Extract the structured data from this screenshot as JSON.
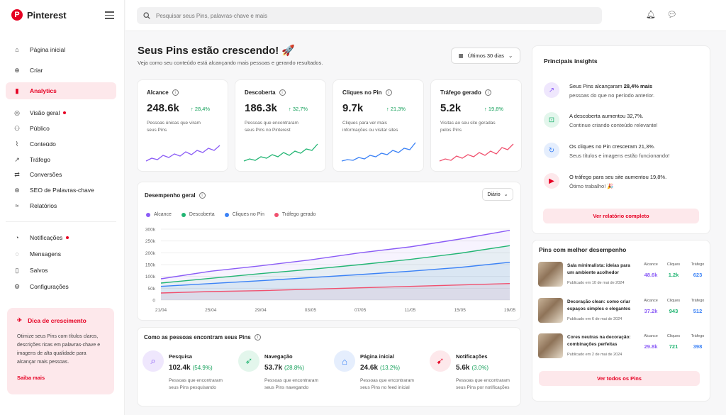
{
  "app": {
    "name": "Pinterest",
    "logo_letter": "P"
  },
  "sidebar": {
    "items": [
      {
        "label": "Página inicial",
        "icon": "home-icon"
      },
      {
        "label": "Criar",
        "icon": "plus-circle-icon"
      },
      {
        "label": "Analytics",
        "icon": "bar-chart-icon"
      },
      {
        "label": "Visão geral",
        "icon": "grid-icon"
      },
      {
        "label": "Público",
        "icon": "people-icon"
      },
      {
        "label": "Conteúdo",
        "icon": "content-icon"
      },
      {
        "label": "Tráfego",
        "icon": "trend-icon"
      },
      {
        "label": "Conversões",
        "icon": "conversion-icon"
      },
      {
        "label": "SEO de Palavras-chave",
        "icon": "seo-icon"
      },
      {
        "label": "Relatórios",
        "icon": "report-icon"
      },
      {
        "label": "Notificações",
        "icon": "bell-icon"
      },
      {
        "label": "Mensagens",
        "icon": "message-icon"
      },
      {
        "label": "Salvos",
        "icon": "bookmark-icon"
      },
      {
        "label": "Configurações",
        "icon": "gear-icon"
      }
    ],
    "tip": {
      "title": "Dica de crescimento",
      "text": "Otimize seus Pins com títulos claros, descrições ricas em palavras-chave e imagens de alta qualidade para alcançar mais pessoas.",
      "link": "Saiba mais"
    }
  },
  "search": {
    "placeholder": "Pesquisar seus Pins, palavras-chave e mais"
  },
  "header": {
    "title": "Seus Pins estão crescendo! 🚀",
    "subtitle": "Veja como seu conteúdo está alcançando mais pessoas e gerando resultados.",
    "date_range": "Últimos 30 dias"
  },
  "kpis": [
    {
      "title": "Alcance",
      "value": "248.6k",
      "change": "↑ 28,4%",
      "desc": "Pessoas únicas que viram seus Pins",
      "color": "#8b5cf6"
    },
    {
      "title": "Descoberta",
      "value": "186.3k",
      "change": "↑ 32,7%",
      "desc": "Pessoas que encontraram seus Pins no Pinterest",
      "color": "#22b573"
    },
    {
      "title": "Cliques no Pin",
      "value": "9.7k",
      "change": "↑ 21,3%",
      "desc": "Cliques para ver mais informações ou visitar sites",
      "color": "#3b82f6"
    },
    {
      "title": "Tráfego gerado",
      "value": "5.2k",
      "change": "↑ 19,8%",
      "desc": "Visitas ao seu site geradas pelos Pins",
      "color": "#f0506e"
    }
  ],
  "performance": {
    "title": "Desempenho geral",
    "granularity": "Diário"
  },
  "chart_data": {
    "type": "area",
    "x": [
      "21/04",
      "25/04",
      "29/04",
      "03/05",
      "07/05",
      "11/05",
      "15/05",
      "19/05"
    ],
    "yticks": [
      "300k",
      "250k",
      "200k",
      "150k",
      "100k",
      "50k",
      "0"
    ],
    "ylim": [
      0,
      300000
    ],
    "series": [
      {
        "name": "Alcance",
        "color": "#8b5cf6",
        "values": [
          90000,
          122000,
          145000,
          170000,
          200000,
          225000,
          258000,
          295000
        ]
      },
      {
        "name": "Descoberta",
        "color": "#22b573",
        "values": [
          72000,
          92000,
          112000,
          130000,
          150000,
          172000,
          198000,
          230000
        ]
      },
      {
        "name": "Cliques no Pin",
        "color": "#3b82f6",
        "values": [
          58000,
          70000,
          82000,
          95000,
          108000,
          122000,
          138000,
          160000
        ]
      },
      {
        "name": "Tráfego gerado",
        "color": "#f0506e",
        "values": [
          30000,
          36000,
          40000,
          46000,
          52000,
          58000,
          64000,
          70000
        ]
      }
    ]
  },
  "sources": {
    "title": "Como as pessoas encontram seus Pins",
    "items": [
      {
        "title": "Pesquisa",
        "value": "102.4k",
        "pct": "(54.9%)",
        "desc": "Pessoas que encontraram seus Pins pesquisando",
        "icon": "search-icon",
        "bg": "#efe7fd",
        "fg": "#8b5cf6"
      },
      {
        "title": "Navegação",
        "value": "53.7k",
        "pct": "(28.8%)",
        "desc": "Pessoas que encontraram seus Pins navegando",
        "icon": "compass-icon",
        "bg": "#e3f6ec",
        "fg": "#22b573"
      },
      {
        "title": "Página inicial",
        "value": "24.6k",
        "pct": "(13.2%)",
        "desc": "Pessoas que encontraram seus Pins no feed inicial",
        "icon": "home-icon",
        "bg": "#e5eefd",
        "fg": "#3b82f6"
      },
      {
        "title": "Notificações",
        "value": "5.6k",
        "pct": "(3.0%)",
        "desc": "Pessoas que encontraram seus Pins por notificações",
        "icon": "cursor-icon",
        "bg": "#fde8eb",
        "fg": "#e60023"
      }
    ]
  },
  "insights": {
    "title": "Principais insights",
    "items": [
      {
        "pre": "Seus Pins alcançaram ",
        "bold": "28,4% mais",
        "post": "",
        "sub": "pessoas do que no período anterior.",
        "icon": "chart-up-icon",
        "bg": "#efe7fd",
        "fg": "#8b5cf6"
      },
      {
        "pre": "A descoberta aumentou 32,7%.",
        "bold": "",
        "post": "",
        "sub": "Continue criando conteúdo relevante!",
        "icon": "discovery-icon",
        "bg": "#e3f6ec",
        "fg": "#22b573"
      },
      {
        "pre": "Os cliques no Pin cresceram 21,3%.",
        "bold": "",
        "post": "",
        "sub": "Seus títulos e imagens estão funcionando!",
        "icon": "click-icon",
        "bg": "#e5eefd",
        "fg": "#3b82f6"
      },
      {
        "pre": "O tráfego para seu site aumentou 19,8%.",
        "bold": "",
        "post": "",
        "sub": "Ótimo trabalho! 🎉",
        "icon": "traffic-icon",
        "bg": "#fde8eb",
        "fg": "#e60023"
      }
    ],
    "button": "Ver relatório completo"
  },
  "top_pins": {
    "title": "Pins com melhor desempenho",
    "headers": [
      "Alcance",
      "Cliques",
      "Tráfego"
    ],
    "items": [
      {
        "name": "Sala minimalista: ideias para um ambiente acolhedor",
        "date": "Publicado em 10 de mai de 2024",
        "reach": "48.6k",
        "clicks": "1.2k",
        "traffic": "623"
      },
      {
        "name": "Decoração clean: como criar espaços simples e elegantes",
        "date": "Publicado em 6 de mai de 2024",
        "reach": "37.2k",
        "clicks": "943",
        "traffic": "512"
      },
      {
        "name": "Cores neutras na decoração: combinações perfeitas",
        "date": "Publicado em 2 de mai de 2024",
        "reach": "29.8k",
        "clicks": "721",
        "traffic": "398"
      }
    ],
    "button": "Ver todos os Pins"
  }
}
